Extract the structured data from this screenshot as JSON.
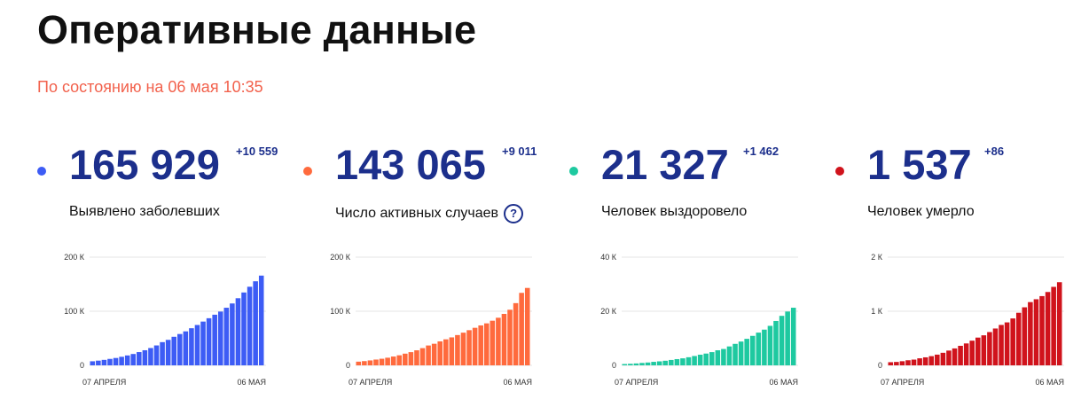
{
  "header": {
    "title": "Оперативные данные",
    "subtitle": "По состоянию на 06 мая 10:35"
  },
  "cards": [
    {
      "value": "165 929",
      "delta": "+10 559",
      "label": "Выявлено заболевших",
      "color": "#3d5cf5"
    },
    {
      "value": "143 065",
      "delta": "+9 011",
      "label": "Число активных случаев",
      "color": "#ff6a3d",
      "help_icon": "?"
    },
    {
      "value": "21 327",
      "delta": "+1 462",
      "label": "Человек выздоровело",
      "color": "#1ec9a0"
    },
    {
      "value": "1 537",
      "delta": "+86",
      "label": "Человек умерло",
      "color": "#d0131c"
    }
  ],
  "chart_data": [
    {
      "type": "bar",
      "x_start_label": "07 АПРЕЛЯ",
      "x_end_label": "06 МАЯ",
      "yticks": [
        {
          "value": 0,
          "label": "0"
        },
        {
          "value": 100000,
          "label": "100 К"
        },
        {
          "value": 200000,
          "label": "200 К"
        }
      ],
      "ylim": [
        0,
        200000
      ],
      "color": "#3d5cf5",
      "values": [
        7500,
        8700,
        10100,
        11900,
        13600,
        15800,
        18300,
        21000,
        24500,
        27900,
        32000,
        36800,
        42900,
        47100,
        52800,
        57900,
        62800,
        68600,
        74600,
        80900,
        87100,
        93600,
        99400,
        106500,
        114400,
        124100,
        134700,
        145300,
        155400,
        165900
      ]
    },
    {
      "type": "bar",
      "x_start_label": "07 АПРЕЛЯ",
      "x_end_label": "06 МАЯ",
      "yticks": [
        {
          "value": 0,
          "label": "0"
        },
        {
          "value": 100000,
          "label": "100 К"
        },
        {
          "value": 200000,
          "label": "200 К"
        }
      ],
      "ylim": [
        0,
        200000
      ],
      "color": "#ff6a3d",
      "values": [
        6800,
        7800,
        9100,
        10700,
        12200,
        14100,
        16300,
        18600,
        21600,
        24400,
        27800,
        31800,
        36700,
        39900,
        44300,
        48100,
        51700,
        56000,
        60400,
        65000,
        69400,
        73800,
        77600,
        82500,
        88000,
        95100,
        102800,
        115000,
        134000,
        143100
      ]
    },
    {
      "type": "bar",
      "x_start_label": "07 АПРЕЛЯ",
      "x_end_label": "06 МАЯ",
      "yticks": [
        {
          "value": 0,
          "label": "0"
        },
        {
          "value": 20000,
          "label": "20 К"
        },
        {
          "value": 40000,
          "label": "40 К"
        }
      ],
      "ylim": [
        0,
        40000
      ],
      "color": "#1ec9a0",
      "values": [
        490,
        580,
        700,
        890,
        1050,
        1290,
        1470,
        1700,
        1990,
        2300,
        2590,
        3000,
        3450,
        3930,
        4350,
        4890,
        5570,
        6050,
        6990,
        7940,
        8800,
        9800,
        10900,
        12100,
        13200,
        14600,
        16400,
        18300,
        19900,
        21300
      ]
    },
    {
      "type": "bar",
      "x_start_label": "07 АПРЕЛЯ",
      "x_end_label": "06 МАЯ",
      "yticks": [
        {
          "value": 0,
          "label": "0"
        },
        {
          "value": 1000,
          "label": "1 К"
        },
        {
          "value": 2000,
          "label": "2 К"
        }
      ],
      "ylim": [
        0,
        2000
      ],
      "color": "#d0131c",
      "values": [
        58,
        63,
        76,
        94,
        106,
        130,
        148,
        170,
        198,
        232,
        273,
        313,
        361,
        405,
        456,
        513,
        555,
        615,
        681,
        747,
        794,
        867,
        972,
        1073,
        1169,
        1222,
        1280,
        1356,
        1451,
        1537
      ]
    }
  ]
}
